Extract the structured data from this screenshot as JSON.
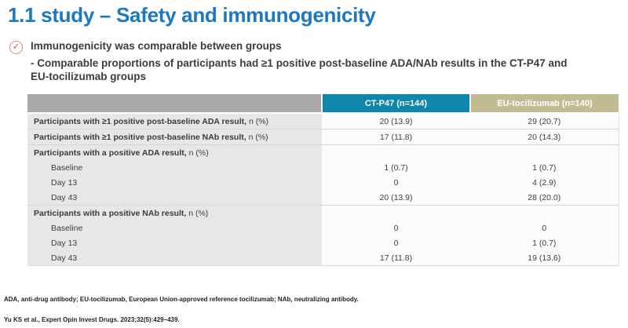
{
  "slide": {
    "title": "1.1 study – Safety and immunogenicity",
    "bullet": {
      "heading": "Immunogenicity was comparable between groups",
      "detail": "- Comparable proportions of participants had ≥1 positive post-baseline ADA/NAb results in the CT-P47 and EU-tocilizumab groups"
    },
    "footnotes": {
      "abbreviations": "ADA, anti-drug antibody; EU-tocilizumab, European Union-approved reference tocilizumab; NAb, neutralizing antibody.",
      "reference": "Yu KS et al., Expert Opin Invest Drugs. 2023;32(5):429–439."
    }
  },
  "icons": {
    "check_circle": "✓"
  },
  "colors": {
    "title_blue": "#1b78c1",
    "check_salmon": "#dd8b7a",
    "header_gray": "#a9a9a9",
    "header_teal": "#0e87aa",
    "header_tan": "#c3bb93",
    "label_column_bg": "#e7e7e7",
    "value_column_bg": "#fcfcfc"
  },
  "table": {
    "headers": {
      "label": "",
      "ctp47": "CT-P47 (n=144)",
      "eu": "EU-tocilizumab (n=140)"
    },
    "rows": [
      {
        "label": "Participants with ≥1 positive post-baseline ADA result,",
        "suffix": " n (%)",
        "ctp47": "20 (13.9)",
        "eu": "29 (20.7)"
      },
      {
        "label": "Participants with ≥1 positive post-baseline NAb result,",
        "suffix": " n (%)",
        "ctp47": "17 (11.8)",
        "eu": "20 (14.3)"
      },
      {
        "label": "Participants with a positive ADA result,",
        "suffix": " n (%)",
        "ctp47": "",
        "eu": ""
      },
      {
        "label": "Baseline",
        "suffix": "",
        "ctp47": "1 (0.7)",
        "eu": "1 (0.7)"
      },
      {
        "label": "Day 13",
        "suffix": "",
        "ctp47": "0",
        "eu": "4 (2.9)"
      },
      {
        "label": "Day 43",
        "suffix": "",
        "ctp47": "20 (13.9)",
        "eu": "28 (20.0)"
      },
      {
        "label": "Participants with a positive NAb result,",
        "suffix": " n (%)",
        "ctp47": "",
        "eu": ""
      },
      {
        "label": "Baseline",
        "suffix": "",
        "ctp47": "0",
        "eu": "0"
      },
      {
        "label": "Day 13",
        "suffix": "",
        "ctp47": "0",
        "eu": "1 (0.7)"
      },
      {
        "label": "Day 43",
        "suffix": "",
        "ctp47": "17 (11.8)",
        "eu": "19 (13.6)"
      }
    ]
  }
}
